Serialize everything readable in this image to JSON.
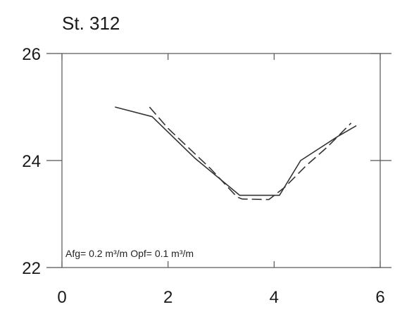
{
  "chart_data": {
    "type": "line",
    "title": "St. 312",
    "xlabel": "",
    "ylabel": "",
    "xlim": [
      0,
      6
    ],
    "ylim": [
      22,
      26
    ],
    "x_ticks": [
      "0",
      "2",
      "4",
      "6"
    ],
    "y_ticks": [
      "22",
      "24",
      "26"
    ],
    "grid": false,
    "annotation": "Afg= 0.2 m³/m  Opf= 0.1 m³/m",
    "series": [
      {
        "style": "solid",
        "color": "#333333",
        "x": [
          1.0,
          1.7,
          2.5,
          3.35,
          3.5,
          4.1,
          4.5,
          5.2,
          5.55
        ],
        "y": [
          25.0,
          24.82,
          24.05,
          23.35,
          23.35,
          23.35,
          24.0,
          24.45,
          24.65
        ]
      },
      {
        "style": "dashed",
        "color": "#333333",
        "x": [
          1.65,
          2.0,
          2.8,
          3.3,
          3.4,
          3.9,
          4.2,
          4.6,
          5.0,
          5.45
        ],
        "y": [
          25.0,
          24.6,
          23.85,
          23.32,
          23.28,
          23.27,
          23.5,
          23.9,
          24.25,
          24.7
        ]
      }
    ]
  }
}
